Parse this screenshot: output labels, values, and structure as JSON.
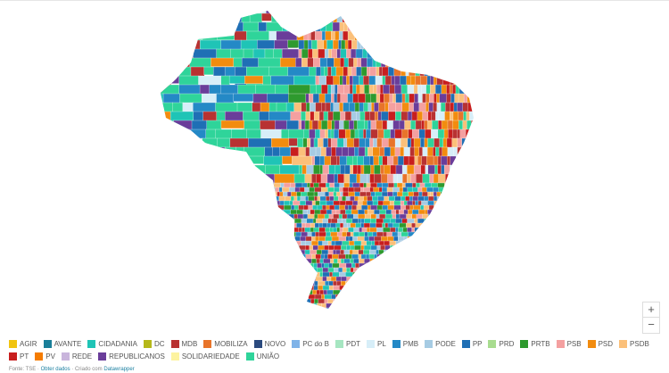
{
  "legend": [
    {
      "label": "AGIR",
      "color": "#f1c40f"
    },
    {
      "label": "AVANTE",
      "color": "#1a7f99"
    },
    {
      "label": "CIDADANIA",
      "color": "#1fc4b6"
    },
    {
      "label": "DC",
      "color": "#b5b81a"
    },
    {
      "label": "MDB",
      "color": "#b83232"
    },
    {
      "label": "MOBILIZA",
      "color": "#e8742a"
    },
    {
      "label": "NOVO",
      "color": "#2b4a7e"
    },
    {
      "label": "PC do B",
      "color": "#7fb3e8"
    },
    {
      "label": "PDT",
      "color": "#a6e6c1"
    },
    {
      "label": "PL",
      "color": "#d7eef8"
    },
    {
      "label": "PMB",
      "color": "#2489c6"
    },
    {
      "label": "PODE",
      "color": "#a6cbe3"
    },
    {
      "label": "PP",
      "color": "#1f6fb5"
    },
    {
      "label": "PRD",
      "color": "#a8dc8f"
    },
    {
      "label": "PRTB",
      "color": "#2e9a2e"
    },
    {
      "label": "PSB",
      "color": "#f4a0a0"
    },
    {
      "label": "PSD",
      "color": "#f28c0f"
    },
    {
      "label": "PSDB",
      "color": "#fbc07a"
    },
    {
      "label": "PT",
      "color": "#c81e1e"
    },
    {
      "label": "PV",
      "color": "#f57c00"
    },
    {
      "label": "REDE",
      "color": "#c9b5dc"
    },
    {
      "label": "REPUBLICANOS",
      "color": "#6a3d9a"
    },
    {
      "label": "SOLIDARIEDADE",
      "color": "#fdf3a0"
    },
    {
      "label": "UNIÃO",
      "color": "#2fd49a"
    }
  ],
  "zoom": {
    "in": "+",
    "out": "−"
  },
  "footer": {
    "source": "Fonte: TSE",
    "sep1": " · ",
    "get_data": "Obter dados",
    "sep2": " · Criado com ",
    "made_with": "Datawrapper"
  }
}
